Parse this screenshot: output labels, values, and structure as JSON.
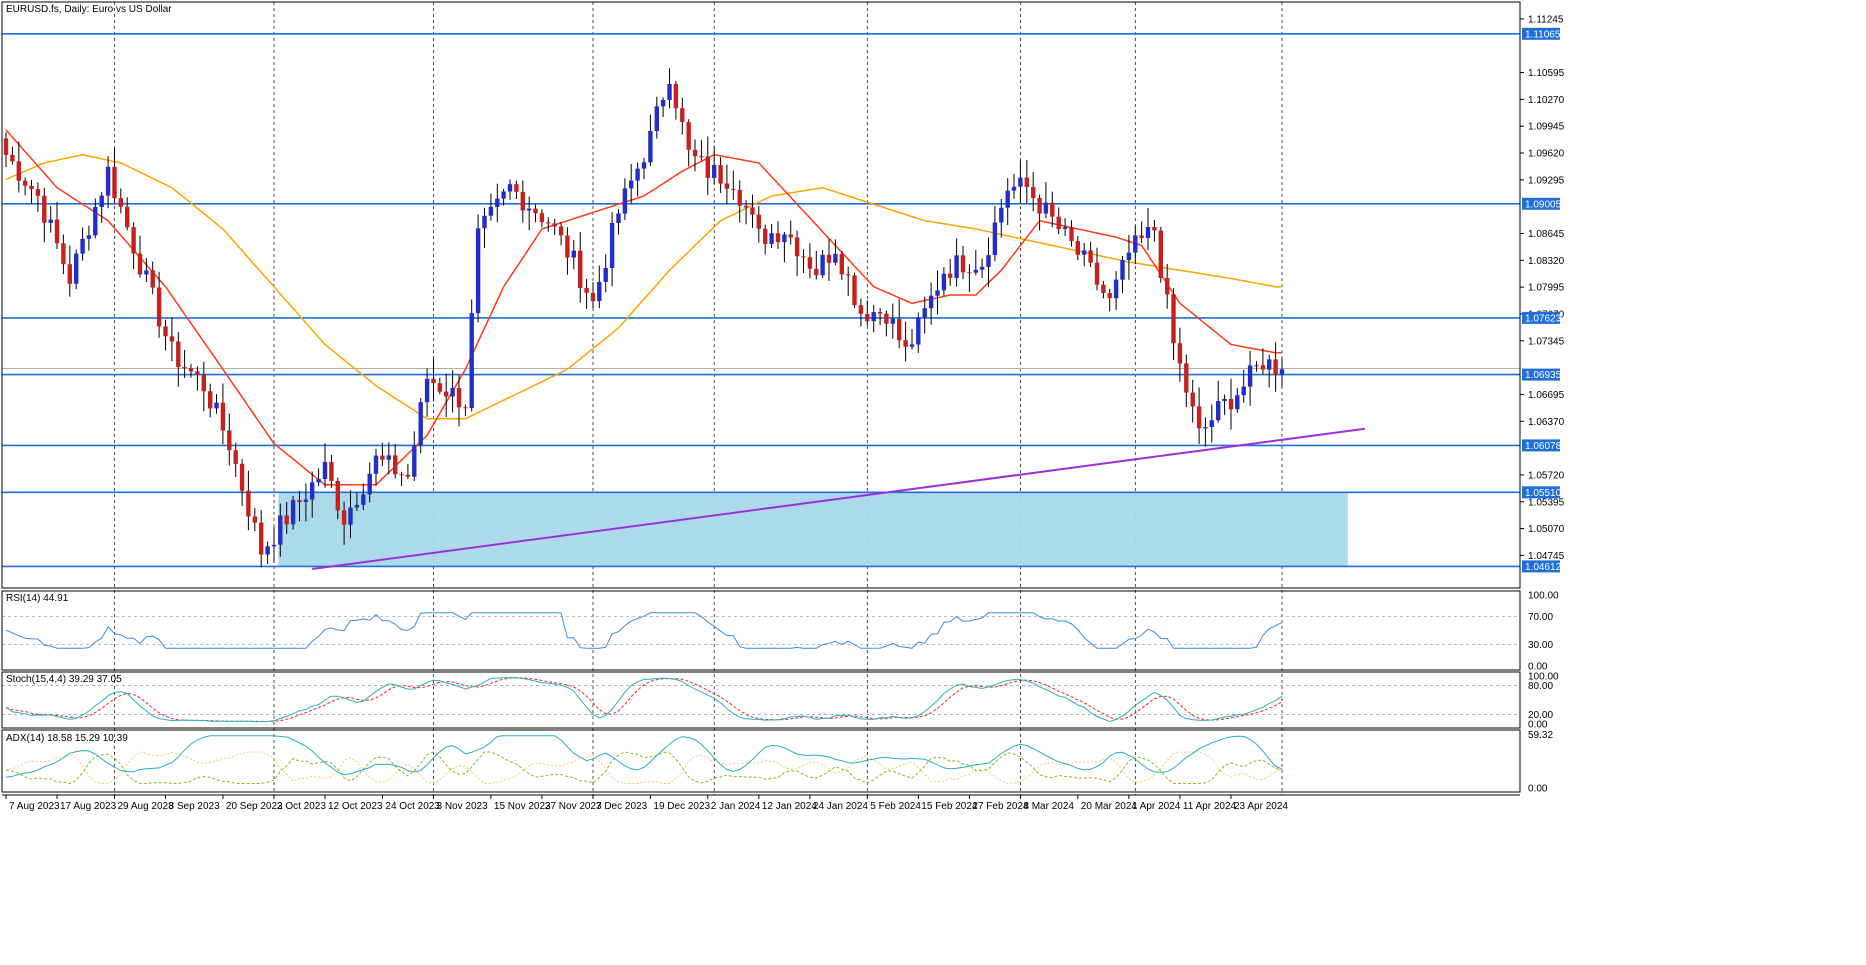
{
  "chart_data": {
    "type": "candlestick",
    "title": "EURUSD.fs, Daily:  Euro vs US Dollar",
    "colors": {
      "bull": "#1f2fc8",
      "bear": "#c8201c",
      "ma_fast": "#ff3b1a",
      "ma_slow": "#ffa500",
      "level": "#1e6fd9",
      "trendline": "#9b30d9",
      "zone": "#a8d8ea",
      "rsi": "#3a8fd9",
      "stoch_main": "#2ab0c0",
      "stoch_signal": "#ff2020",
      "adx": "#2ab0c0",
      "di_plus": "#88bb22",
      "di_minus": "#ffcc66"
    },
    "price_axis": {
      "ylim": [
        1.0435,
        1.1145
      ],
      "ticks": [
        "1.11245",
        "1.10595",
        "1.10270",
        "1.09945",
        "1.09620",
        "1.09295",
        "1.08645",
        "1.08320",
        "1.07995",
        "1.07670",
        "1.07345",
        "1.06695",
        "1.06370",
        "1.05720",
        "1.05395",
        "1.05070",
        "1.04745"
      ]
    },
    "horizontal_levels": [
      {
        "label": "1.11065",
        "value": 1.11065
      },
      {
        "label": "1.09005",
        "value": 1.09005
      },
      {
        "label": "1.07623",
        "value": 1.07623
      },
      {
        "label": "1.06935",
        "value": 1.06935
      },
      {
        "label": "1.06078",
        "value": 1.06078
      },
      {
        "label": "1.05510",
        "value": 1.0551
      },
      {
        "label": "1.04612",
        "value": 1.04612
      }
    ],
    "current_price": 1.0701,
    "zone": {
      "from_index": 43,
      "to_index": 210,
      "low": 1.04612,
      "high": 1.0551
    },
    "trendline": {
      "from_index": 48,
      "from_value": 1.0458,
      "to_index": 213,
      "to_value": 1.0628
    },
    "x_labels": [
      {
        "label": "7 Aug 2023",
        "index": 0
      },
      {
        "label": "17 Aug 2023",
        "index": 8
      },
      {
        "label": "29 Aug 2023",
        "index": 17
      },
      {
        "label": "8 Sep 2023",
        "index": 25
      },
      {
        "label": "20 Sep 2023",
        "index": 34
      },
      {
        "label": "2 Oct 2023",
        "index": 42
      },
      {
        "label": "12 Oct 2023",
        "index": 50
      },
      {
        "label": "24 Oct 2023",
        "index": 59
      },
      {
        "label": "3 Nov 2023",
        "index": 67
      },
      {
        "label": "15 Nov 2023",
        "index": 76
      },
      {
        "label": "27 Nov 2023",
        "index": 84
      },
      {
        "label": "7 Dec 2023",
        "index": 92
      },
      {
        "label": "19 Dec 2023",
        "index": 101
      },
      {
        "label": "2 Jan 2024",
        "index": 110
      },
      {
        "label": "12 Jan 2024",
        "index": 118
      },
      {
        "label": "24 Jan 2024",
        "index": 126
      },
      {
        "label": "5 Feb 2024",
        "index": 135
      },
      {
        "label": "15 Feb 2024",
        "index": 143
      },
      {
        "label": "27 Feb 2024",
        "index": 151
      },
      {
        "label": "8 Mar 2024",
        "index": 159
      },
      {
        "label": "20 Mar 2024",
        "index": 168
      },
      {
        "label": "1 Apr 2024",
        "index": 176
      },
      {
        "label": "11 Apr 2024",
        "index": 184
      },
      {
        "label": "23 Apr 2024",
        "index": 192
      }
    ],
    "vertical_grid_indices": [
      17,
      42,
      67,
      92,
      111,
      135,
      159,
      177,
      200
    ],
    "anchors": [
      [
        0,
        1.096
      ],
      [
        5,
        1.091
      ],
      [
        10,
        1.081
      ],
      [
        16,
        1.094
      ],
      [
        20,
        1.085
      ],
      [
        26,
        1.072
      ],
      [
        31,
        1.068
      ],
      [
        35,
        1.061
      ],
      [
        40,
        1.048
      ],
      [
        46,
        1.054
      ],
      [
        50,
        1.058
      ],
      [
        53,
        1.052
      ],
      [
        58,
        1.059
      ],
      [
        63,
        1.057
      ],
      [
        66,
        1.069
      ],
      [
        72,
        1.066
      ],
      [
        74,
        1.086
      ],
      [
        79,
        1.092
      ],
      [
        85,
        1.088
      ],
      [
        89,
        1.083
      ],
      [
        92,
        1.078
      ],
      [
        96,
        1.089
      ],
      [
        101,
        1.098
      ],
      [
        104,
        1.106
      ],
      [
        107,
        1.096
      ],
      [
        110,
        1.094
      ],
      [
        114,
        1.093
      ],
      [
        118,
        1.086
      ],
      [
        122,
        1.087
      ],
      [
        127,
        1.082
      ],
      [
        130,
        1.085
      ],
      [
        134,
        1.077
      ],
      [
        138,
        1.077
      ],
      [
        141,
        1.072
      ],
      [
        143,
        1.075
      ],
      [
        147,
        1.082
      ],
      [
        150,
        1.083
      ],
      [
        153,
        1.083
      ],
      [
        157,
        1.092
      ],
      [
        160,
        1.092
      ],
      [
        164,
        1.088
      ],
      [
        166,
        1.086
      ],
      [
        169,
        1.083
      ],
      [
        173,
        1.078
      ],
      [
        176,
        1.084
      ],
      [
        180,
        1.087
      ],
      [
        183,
        1.073
      ],
      [
        187,
        1.062
      ],
      [
        190,
        1.065
      ],
      [
        194,
        1.068
      ],
      [
        197,
        1.071
      ],
      [
        200,
        1.07
      ]
    ],
    "ma_fast_anchors": [
      [
        0,
        1.099
      ],
      [
        8,
        1.092
      ],
      [
        16,
        1.088
      ],
      [
        25,
        1.08
      ],
      [
        34,
        1.07
      ],
      [
        42,
        1.061
      ],
      [
        50,
        1.056
      ],
      [
        58,
        1.056
      ],
      [
        66,
        1.062
      ],
      [
        72,
        1.07
      ],
      [
        78,
        1.08
      ],
      [
        84,
        1.087
      ],
      [
        92,
        1.089
      ],
      [
        100,
        1.091
      ],
      [
        106,
        1.094
      ],
      [
        111,
        1.096
      ],
      [
        118,
        1.095
      ],
      [
        124,
        1.09
      ],
      [
        130,
        1.085
      ],
      [
        136,
        1.08
      ],
      [
        142,
        1.078
      ],
      [
        148,
        1.079
      ],
      [
        152,
        1.079
      ],
      [
        156,
        1.082
      ],
      [
        162,
        1.088
      ],
      [
        168,
        1.087
      ],
      [
        174,
        1.086
      ],
      [
        178,
        1.085
      ],
      [
        184,
        1.078
      ],
      [
        192,
        1.073
      ],
      [
        199,
        1.072
      ]
    ],
    "ma_slow_anchors": [
      [
        0,
        1.093
      ],
      [
        6,
        1.095
      ],
      [
        12,
        1.096
      ],
      [
        18,
        1.095
      ],
      [
        26,
        1.092
      ],
      [
        34,
        1.087
      ],
      [
        42,
        1.08
      ],
      [
        50,
        1.073
      ],
      [
        58,
        1.068
      ],
      [
        66,
        1.064
      ],
      [
        72,
        1.064
      ],
      [
        80,
        1.067
      ],
      [
        88,
        1.07
      ],
      [
        96,
        1.075
      ],
      [
        104,
        1.082
      ],
      [
        112,
        1.088
      ],
      [
        120,
        1.091
      ],
      [
        128,
        1.092
      ],
      [
        136,
        1.09
      ],
      [
        144,
        1.088
      ],
      [
        152,
        1.087
      ],
      [
        158,
        1.086
      ],
      [
        164,
        1.085
      ],
      [
        170,
        1.084
      ],
      [
        176,
        1.083
      ],
      [
        184,
        1.082
      ],
      [
        192,
        1.081
      ],
      [
        199,
        1.08
      ]
    ],
    "rsi": {
      "label": "RSI(14) 44.91",
      "ylim": [
        0,
        100
      ],
      "levels": [
        70,
        30
      ],
      "ticks": [
        "100.00",
        "70.00",
        "30.00",
        "0.00"
      ]
    },
    "stoch": {
      "label": "Stoch(15,4,4) 39.29 37.05",
      "ylim": [
        0,
        100
      ],
      "levels": [
        80,
        20
      ],
      "ticks": [
        "100.00",
        "80.00",
        "20.00",
        "0.00"
      ]
    },
    "adx": {
      "label": "ADX(14) 18.58 15.29 10.39",
      "ylim": [
        0,
        60
      ],
      "ticks": [
        "59.32",
        "0.00"
      ]
    }
  }
}
